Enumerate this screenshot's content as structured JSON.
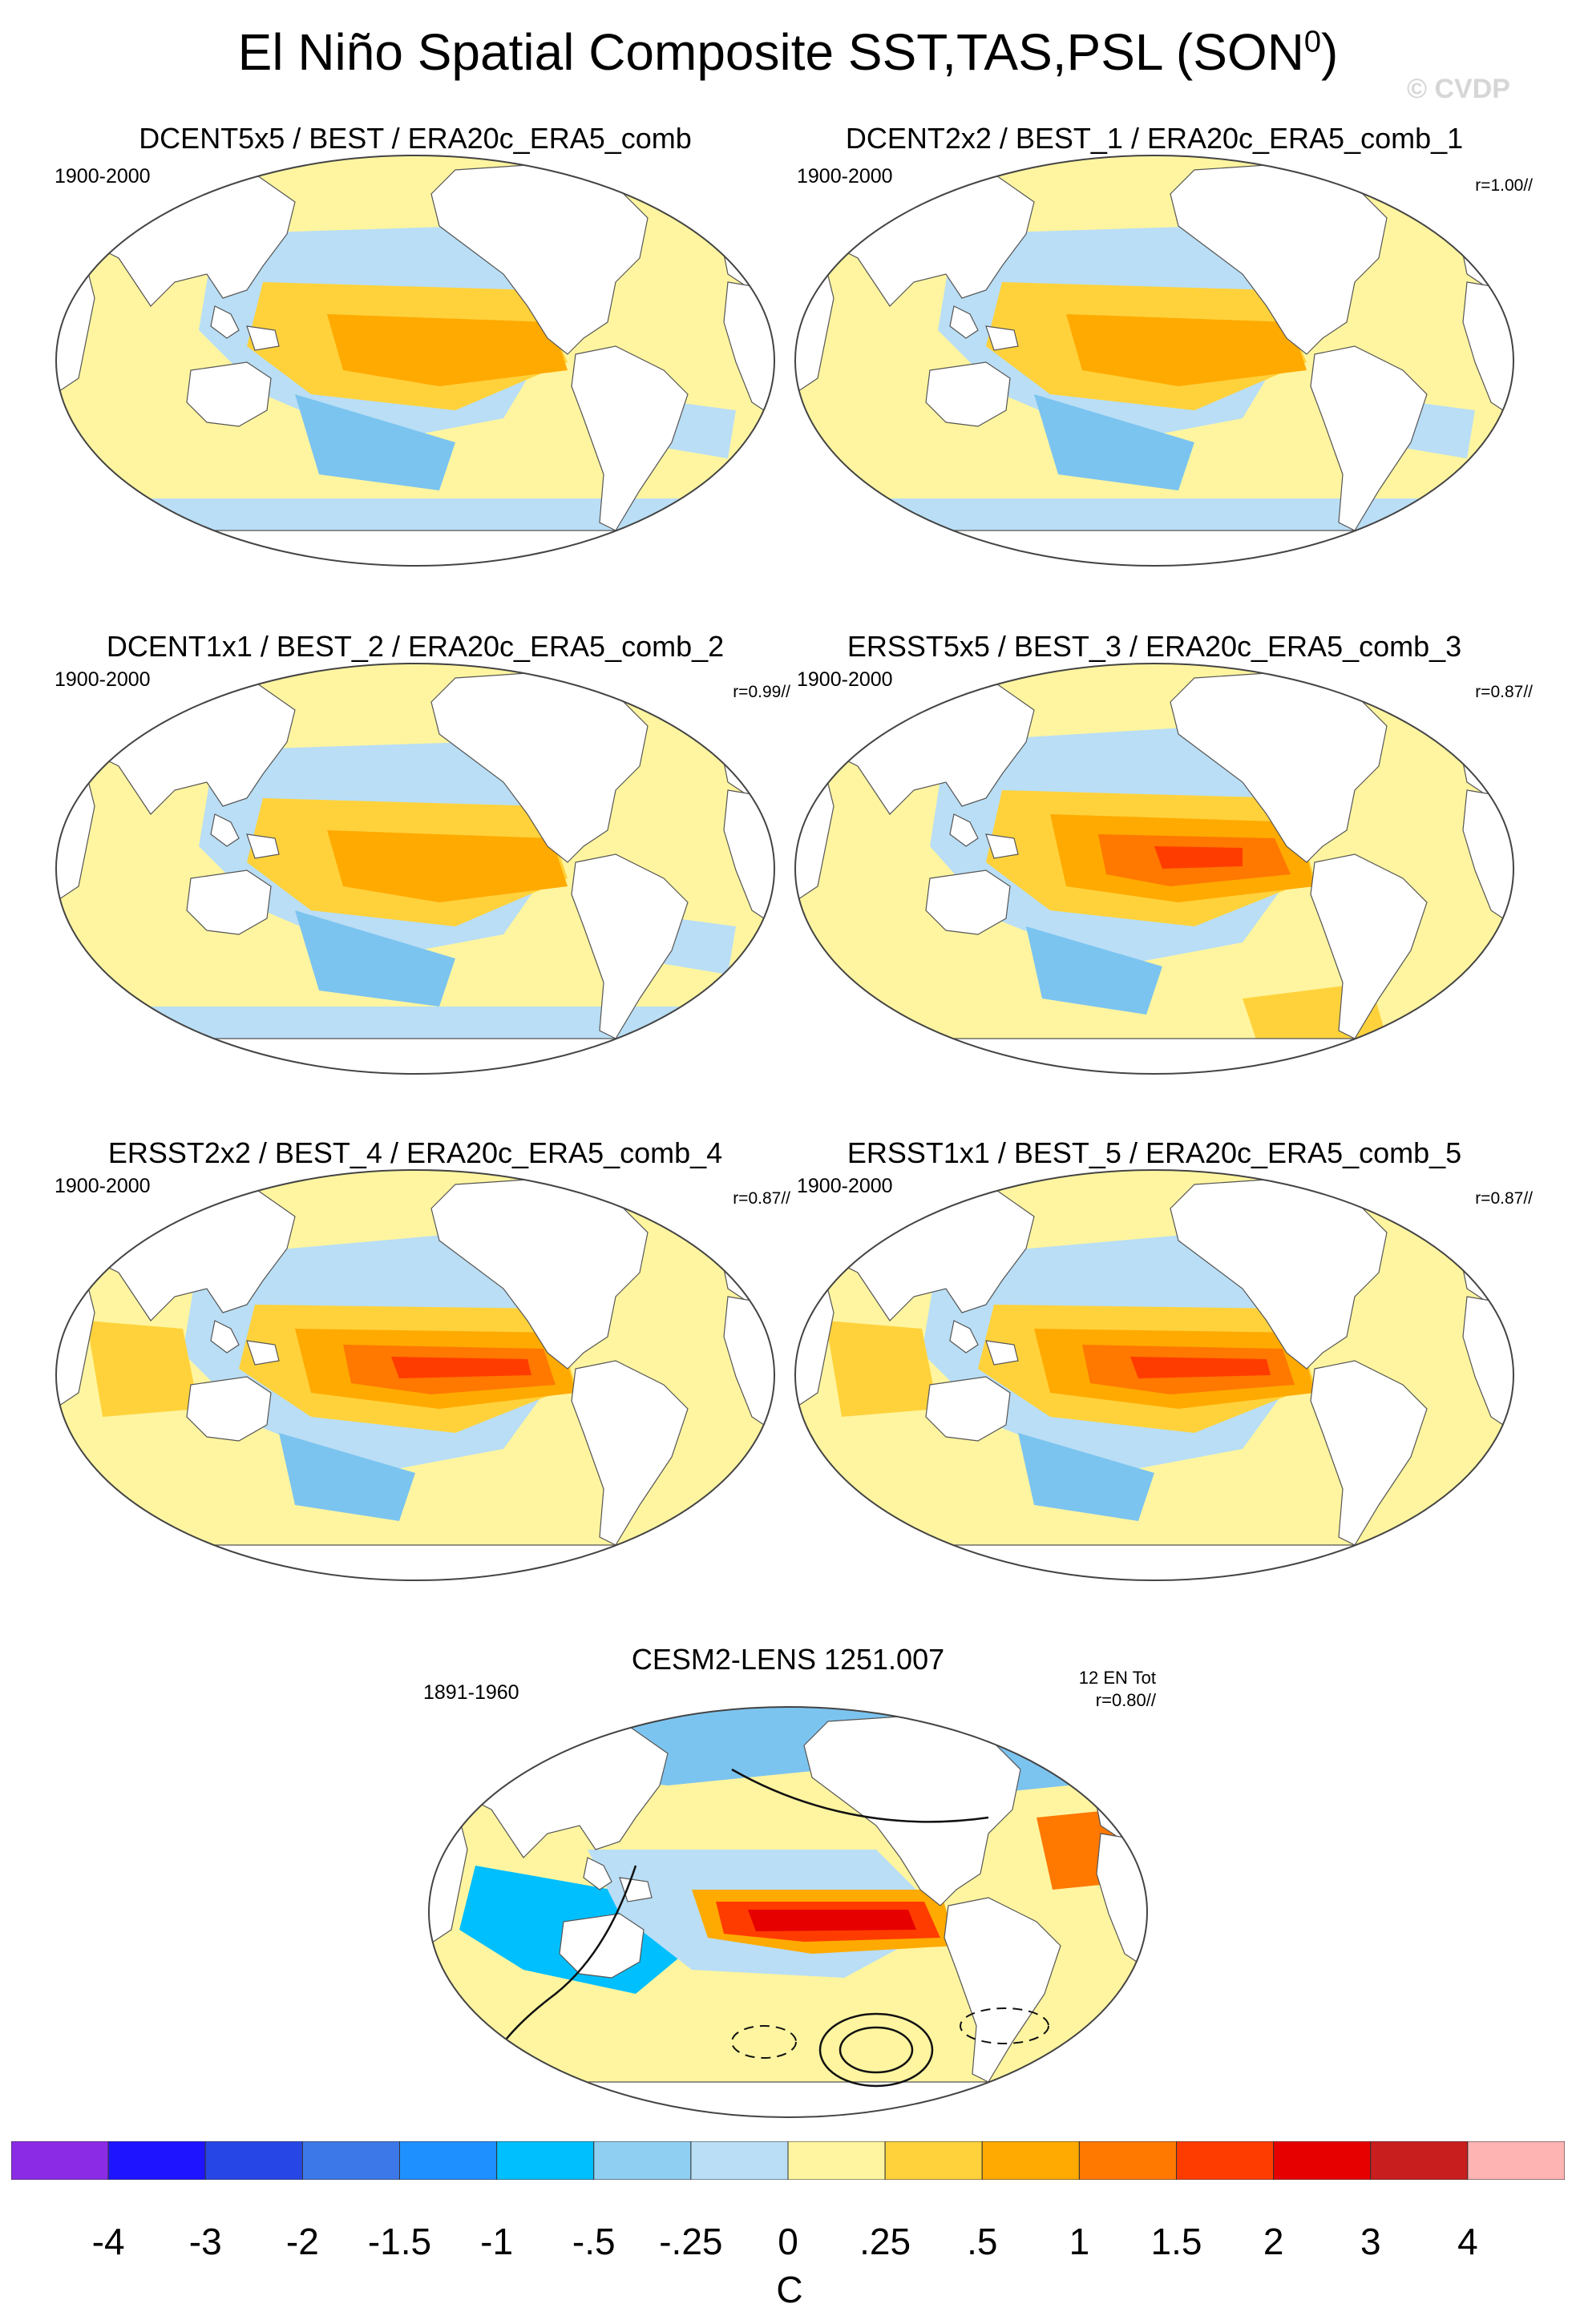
{
  "title_main": "El Niño Spatial Composite SST,TAS,PSL (SON",
  "title_sup": "0",
  "title_close": ")",
  "watermark": "© CVDP",
  "panels": [
    {
      "title": "DCENT5x5 / BEST / ERA20c_ERA5_comb",
      "period": "1900-2000",
      "r": ""
    },
    {
      "title": "DCENT2x2 / BEST_1 / ERA20c_ERA5_comb_1",
      "period": "1900-2000",
      "r": "r=1.00//"
    },
    {
      "title": "DCENT1x1 / BEST_2 / ERA20c_ERA5_comb_2",
      "period": "1900-2000",
      "r": "r=0.99//"
    },
    {
      "title": "ERSST5x5 / BEST_3 / ERA20c_ERA5_comb_3",
      "period": "1900-2000",
      "r": "r=0.87//"
    },
    {
      "title": "ERSST2x2 / BEST_4 / ERA20c_ERA5_comb_4",
      "period": "1900-2000",
      "r": "r=0.87//"
    },
    {
      "title": "ERSST1x1 / BEST_5 / ERA20c_ERA5_comb_5",
      "period": "1900-2000",
      "r": "r=0.87//"
    },
    {
      "title": "CESM2-LENS 1251.007",
      "period": "1891-1960",
      "r": "r=0.80//",
      "count": "12 EN Tot"
    }
  ],
  "colorbar": {
    "unit": "C",
    "labels": [
      "-4",
      "-3",
      "-2",
      "-1.5",
      "-1",
      "-.5",
      "-.25",
      "0",
      ".25",
      ".5",
      "1",
      "1.5",
      "2",
      "3",
      "4"
    ],
    "colors": [
      "#8c2be6",
      "#1f14ff",
      "#2646e6",
      "#3c78e8",
      "#1e90ff",
      "#00bfff",
      "#8fcff2",
      "#b9def5",
      "#fff5a0",
      "#ffd23c",
      "#ffaa00",
      "#ff7800",
      "#ff3c00",
      "#e60000",
      "#c81e1e",
      "#ffb4b4"
    ]
  },
  "palette": {
    "land": "#ffffff",
    "outline": "#555555",
    "blue_light": "#b9def5",
    "blue_mid": "#7cc4f0",
    "yellow": "#fff5a0",
    "gold": "#ffd23c",
    "orange": "#ffaa00",
    "orange_dark": "#ff7800",
    "red": "#ff3c00",
    "red_dark": "#e60000"
  }
}
